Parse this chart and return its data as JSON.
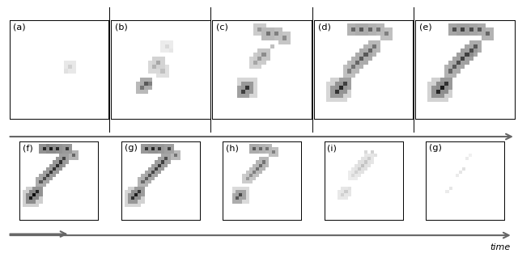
{
  "labels_row1": [
    "(a)",
    "(b)",
    "(c)",
    "(d)",
    "(e)"
  ],
  "labels_row2": [
    "(f)",
    "(g)",
    "(h)",
    "(i)",
    "(g)"
  ],
  "n_cols": 5,
  "n_rows": 2,
  "fig_width": 6.4,
  "fig_height": 3.13,
  "background": "#ffffff",
  "arrow_color": "#666666",
  "border_color": "#000000",
  "time_label": "time",
  "sep_line_color": "#000000"
}
